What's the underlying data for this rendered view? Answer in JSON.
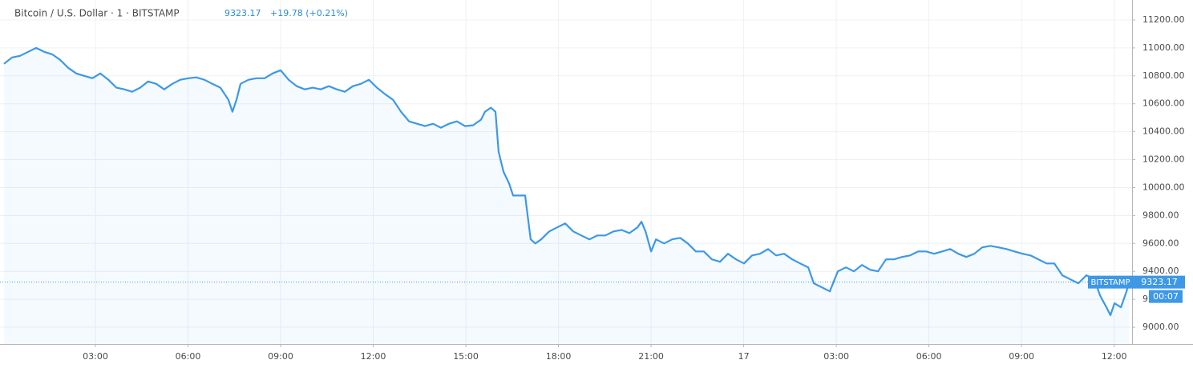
{
  "chart_data": {
    "type": "line",
    "title": "Bitcoin / U.S. Dollar · 1 · BITSTAMP",
    "change": "+19.78 (+0.21%)",
    "countdown": "00:07",
    "grid": true,
    "xlim": [
      -0.09,
      36.58
    ],
    "ylim": [
      8880,
      11343
    ],
    "xticks": [
      {
        "value": 3,
        "label": "03:00"
      },
      {
        "value": 6,
        "label": "06:00"
      },
      {
        "value": 9,
        "label": "09:00"
      },
      {
        "value": 12,
        "label": "12:00"
      },
      {
        "value": 15,
        "label": "15:00"
      },
      {
        "value": 18,
        "label": "18:00"
      },
      {
        "value": 21,
        "label": "21:00"
      },
      {
        "value": 24,
        "label": "17"
      },
      {
        "value": 27,
        "label": "03:00"
      },
      {
        "value": 30,
        "label": "06:00"
      },
      {
        "value": 33,
        "label": "09:00"
      },
      {
        "value": 36,
        "label": "12:00"
      }
    ],
    "yticks": [
      {
        "value": 9000,
        "label": "9000.00"
      },
      {
        "value": 9200,
        "label": "9200.00"
      },
      {
        "value": 9400,
        "label": "9400.00"
      },
      {
        "value": 9600,
        "label": "9600.00"
      },
      {
        "value": 9800,
        "label": "9800.00"
      },
      {
        "value": 10000,
        "label": "10000.00"
      },
      {
        "value": 10200,
        "label": "10200.00"
      },
      {
        "value": 10400,
        "label": "10400.00"
      },
      {
        "value": 10600,
        "label": "10600.00"
      },
      {
        "value": 10800,
        "label": "10800.00"
      },
      {
        "value": 11000,
        "label": "11000.00"
      },
      {
        "value": 11200,
        "label": "11200.00"
      }
    ],
    "x": [
      0.04,
      0.3,
      0.56,
      0.82,
      1.08,
      1.34,
      1.6,
      1.86,
      2.12,
      2.38,
      2.64,
      2.9,
      3.16,
      3.42,
      3.68,
      3.94,
      4.19,
      4.45,
      4.71,
      4.97,
      5.23,
      5.49,
      5.75,
      6.01,
      6.27,
      6.53,
      6.79,
      7.05,
      7.31,
      7.44,
      7.57,
      7.7,
      7.96,
      8.22,
      8.48,
      8.74,
      9.0,
      9.26,
      9.52,
      9.78,
      10.04,
      10.3,
      10.56,
      10.82,
      11.08,
      11.34,
      11.6,
      11.86,
      12.12,
      12.38,
      12.64,
      12.9,
      13.16,
      13.42,
      13.68,
      13.94,
      14.19,
      14.45,
      14.71,
      14.97,
      15.23,
      15.49,
      15.62,
      15.81,
      15.96,
      16.06,
      16.22,
      16.4,
      16.53,
      16.74,
      16.92,
      17.0,
      17.1,
      17.25,
      17.44,
      17.7,
      17.96,
      18.22,
      18.48,
      18.74,
      19.0,
      19.26,
      19.52,
      19.78,
      20.04,
      20.3,
      20.56,
      20.69,
      20.82,
      21.0,
      21.16,
      21.42,
      21.68,
      21.94,
      22.19,
      22.45,
      22.71,
      22.97,
      23.23,
      23.49,
      23.75,
      24.01,
      24.27,
      24.53,
      24.79,
      25.05,
      25.31,
      25.57,
      25.83,
      26.09,
      26.27,
      26.53,
      26.79,
      27.05,
      27.31,
      27.57,
      27.83,
      28.09,
      28.35,
      28.61,
      28.87,
      29.13,
      29.39,
      29.65,
      29.91,
      30.17,
      30.43,
      30.69,
      30.95,
      31.21,
      31.47,
      31.73,
      31.99,
      32.25,
      32.51,
      32.77,
      33.03,
      33.29,
      33.55,
      33.81,
      34.06,
      34.32,
      34.58,
      34.84,
      35.1,
      35.36,
      35.54,
      35.75,
      35.88,
      36.01,
      36.22,
      36.4,
      36.48
    ],
    "series": [
      {
        "name": "BITSTAMP",
        "color": "#3d98e6",
        "values": [
          10886,
          10932,
          10943,
          10972,
          11000,
          10972,
          10954,
          10914,
          10857,
          10817,
          10800,
          10783,
          10817,
          10772,
          10715,
          10703,
          10686,
          10715,
          10760,
          10743,
          10703,
          10743,
          10772,
          10783,
          10789,
          10772,
          10743,
          10715,
          10629,
          10543,
          10629,
          10743,
          10772,
          10783,
          10783,
          10817,
          10840,
          10772,
          10726,
          10703,
          10715,
          10703,
          10726,
          10703,
          10686,
          10726,
          10743,
          10772,
          10715,
          10669,
          10629,
          10543,
          10474,
          10457,
          10440,
          10457,
          10429,
          10457,
          10474,
          10440,
          10446,
          10486,
          10543,
          10572,
          10543,
          10257,
          10114,
          10029,
          9943,
          9943,
          9943,
          9800,
          9629,
          9600,
          9629,
          9686,
          9715,
          9743,
          9686,
          9657,
          9629,
          9657,
          9657,
          9686,
          9697,
          9674,
          9715,
          9755,
          9686,
          9543,
          9629,
          9600,
          9629,
          9640,
          9600,
          9543,
          9543,
          9486,
          9469,
          9526,
          9486,
          9457,
          9514,
          9526,
          9560,
          9514,
          9526,
          9486,
          9457,
          9429,
          9315,
          9286,
          9257,
          9400,
          9429,
          9400,
          9446,
          9412,
          9400,
          9486,
          9486,
          9503,
          9514,
          9543,
          9543,
          9526,
          9543,
          9560,
          9526,
          9503,
          9526,
          9572,
          9583,
          9572,
          9560,
          9543,
          9526,
          9514,
          9486,
          9457,
          9457,
          9372,
          9343,
          9315,
          9372,
          9343,
          9229,
          9143,
          9086,
          9172,
          9143,
          9257,
          9323.17
        ]
      }
    ]
  }
}
